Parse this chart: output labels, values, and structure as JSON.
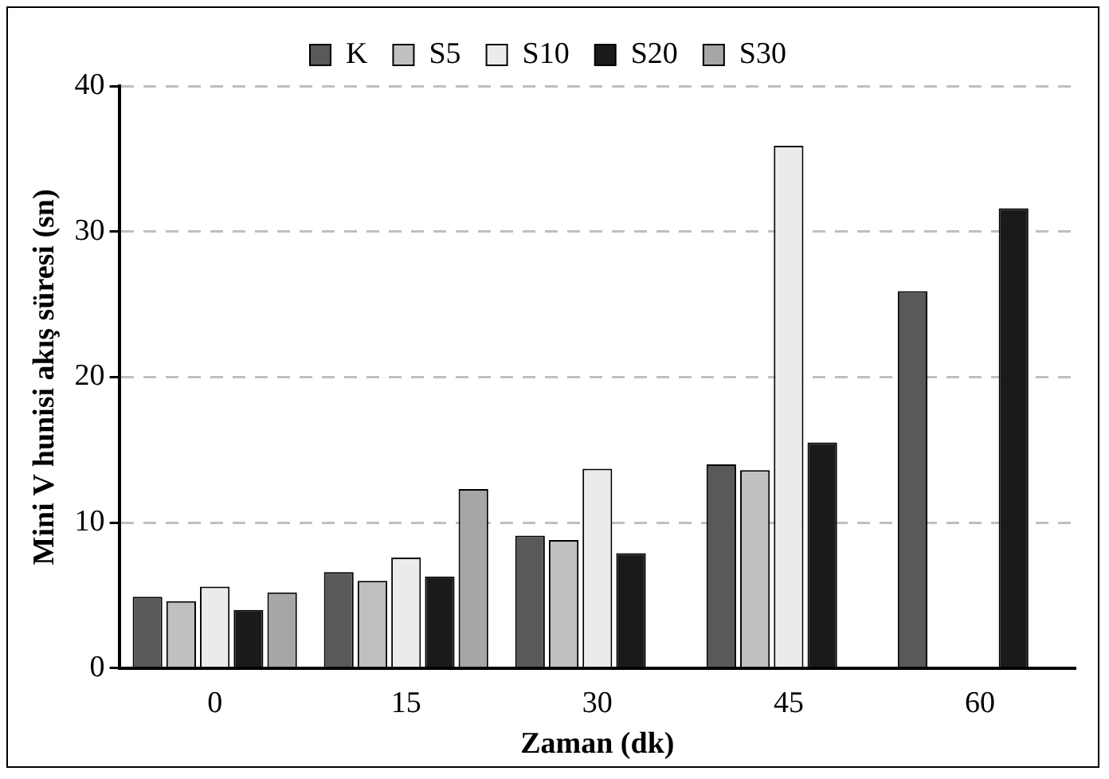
{
  "chart_data": {
    "type": "bar",
    "xlabel": "Zaman (dk)",
    "ylabel": "Mini V hunisi akış süresi (sn)",
    "categories": [
      "0",
      "15",
      "30",
      "45",
      "60"
    ],
    "series": [
      {
        "name": "K",
        "color": "#595959",
        "values": [
          4.9,
          6.6,
          9.1,
          14.0,
          25.9
        ]
      },
      {
        "name": "S5",
        "color": "#c0c0c0",
        "values": [
          4.6,
          6.0,
          8.8,
          13.6,
          null
        ]
      },
      {
        "name": "S10",
        "color": "#ebebeb",
        "values": [
          5.6,
          7.6,
          13.7,
          35.9,
          null
        ]
      },
      {
        "name": "S20",
        "color": "#1a1a1a",
        "values": [
          4.0,
          6.3,
          7.9,
          15.5,
          31.6
        ]
      },
      {
        "name": "S30",
        "color": "#a6a6a6",
        "values": [
          5.2,
          12.3,
          null,
          null,
          null
        ]
      }
    ],
    "ylim": [
      0,
      40
    ],
    "yticks": [
      0,
      10,
      20,
      30,
      40
    ],
    "grid": "y",
    "legend": "top"
  }
}
